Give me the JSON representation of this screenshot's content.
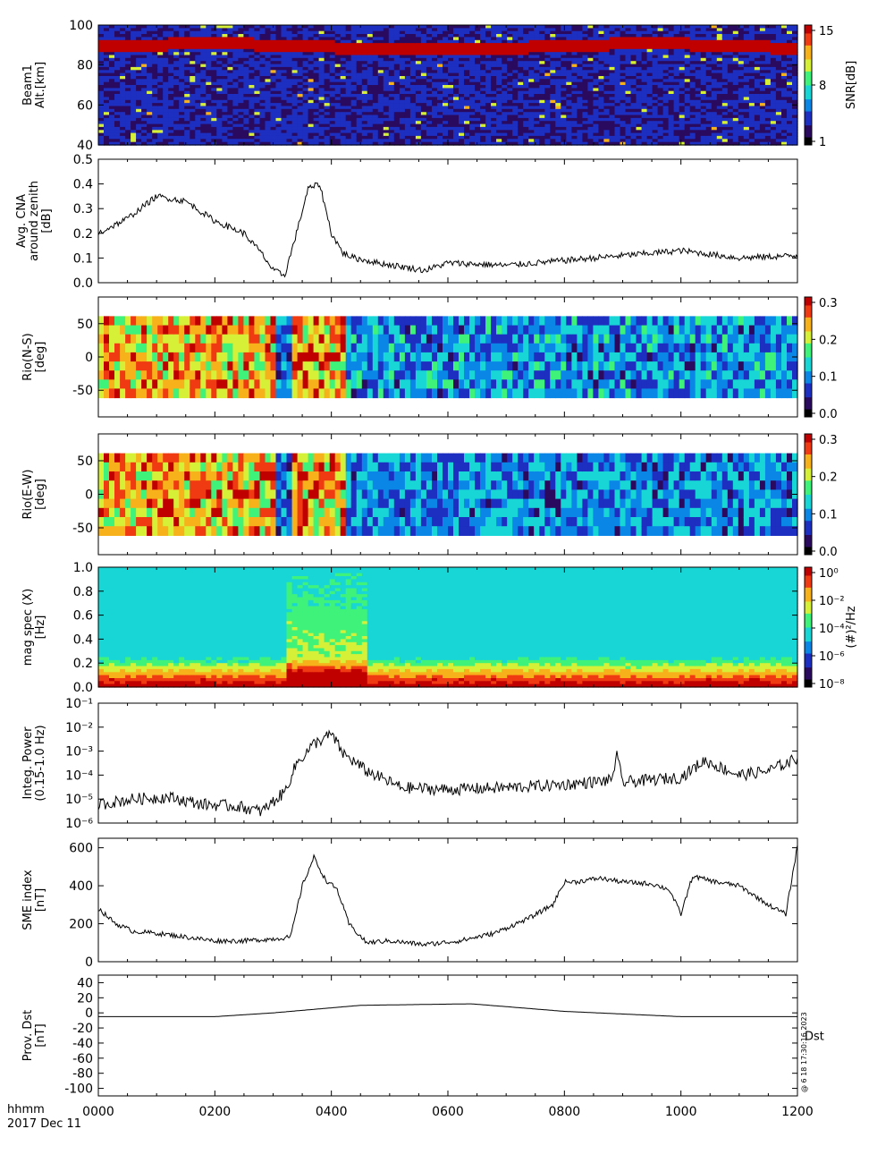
{
  "colors": {
    "line": "#000000",
    "jet": [
      "#000000",
      "#2a0a5e",
      "#1d2fc0",
      "#0a86e6",
      "#19d6d6",
      "#3ef27a",
      "#d6f038",
      "#f7b21b",
      "#ef3a12",
      "#c00000"
    ]
  },
  "footer": {
    "axis_label": "hhmm",
    "date": "2017 Dec 11",
    "stamp": "@ 6 18 17:30:16 2023"
  },
  "chart_data": [
    {
      "id": "beam1-snr",
      "type": "heatmap",
      "ylabel": [
        "Beam1",
        "Alt.[km]"
      ],
      "ylim": [
        40,
        100
      ],
      "yticks": [
        40,
        60,
        80,
        100
      ],
      "colorbar": {
        "label": "SNR[dB]",
        "range": [
          1,
          15
        ],
        "ticks": [
          "15",
          "8",
          "1"
        ]
      },
      "description_bands": [
        {
          "alt_center": 89,
          "width_km": 5,
          "snr": 15
        }
      ]
    },
    {
      "id": "cna",
      "type": "line",
      "ylabel": [
        "Avg. CNA",
        "around zenith",
        "[dB]"
      ],
      "ylim": [
        0,
        0.5
      ],
      "yticks": [
        "0.0",
        "0.1",
        "0.2",
        "0.3",
        "0.4",
        "0.5"
      ],
      "x": [
        0,
        50,
        100,
        150,
        200,
        250,
        280,
        300,
        320,
        340,
        360,
        380,
        400,
        420,
        440,
        480,
        560,
        600,
        700,
        800,
        900,
        1000,
        1100,
        1200
      ],
      "values": [
        0.2,
        0.26,
        0.35,
        0.33,
        0.25,
        0.2,
        0.12,
        0.05,
        0.03,
        0.2,
        0.38,
        0.4,
        0.2,
        0.12,
        0.1,
        0.08,
        0.05,
        0.08,
        0.07,
        0.09,
        0.11,
        0.13,
        0.1,
        0.11
      ]
    },
    {
      "id": "rio-ns",
      "type": "heatmap",
      "ylabel": [
        "Rio(N-S)",
        "[deg]"
      ],
      "ylim": [
        -90,
        90
      ],
      "yticks": [
        "50",
        "0",
        "-50"
      ],
      "colorbar": {
        "range": [
          0,
          0.35
        ],
        "ticks": [
          "0.3",
          "0.2",
          "0.1",
          "0.0"
        ]
      }
    },
    {
      "id": "rio-ew",
      "type": "heatmap",
      "ylabel": [
        "Rio(E-W)",
        "[deg]"
      ],
      "ylim": [
        -90,
        90
      ],
      "yticks": [
        "50",
        "0",
        "-50"
      ],
      "colorbar": {
        "range": [
          0,
          0.35
        ],
        "ticks": [
          "0.3",
          "0.2",
          "0.1",
          "0.0"
        ]
      }
    },
    {
      "id": "mag-spec",
      "type": "heatmap",
      "ylabel": [
        "mag spec (X)",
        "[Hz]"
      ],
      "ylim": [
        0,
        1.0
      ],
      "yticks": [
        "0.0",
        "0.2",
        "0.4",
        "0.6",
        "0.8",
        "1.0"
      ],
      "colorbar": {
        "label": "(#)²/Hz",
        "ticks": [
          "10⁰",
          "10⁻²",
          "10⁻⁴",
          "10⁻⁶",
          "10⁻⁸"
        ]
      }
    },
    {
      "id": "integ-power",
      "type": "line",
      "log": true,
      "ylabel": [
        "Integ. Power",
        "(0.15-1.0 Hz)"
      ],
      "ylim": [
        1e-06,
        0.1
      ],
      "yticks": [
        "10⁻¹",
        "10⁻²",
        "10⁻³",
        "10⁻⁴",
        "10⁻⁵",
        "10⁻⁶"
      ],
      "x": [
        0,
        60,
        120,
        180,
        240,
        280,
        320,
        340,
        370,
        400,
        420,
        460,
        520,
        600,
        700,
        800,
        880,
        890,
        900,
        1000,
        1040,
        1100,
        1150,
        1200
      ],
      "values": [
        6e-06,
        1e-05,
        1.2e-05,
        6e-06,
        5e-06,
        3e-06,
        2e-05,
        0.0003,
        0.002,
        0.005,
        0.0008,
        0.00015,
        3e-05,
        2.5e-05,
        3e-05,
        4e-05,
        6e-05,
        0.0006,
        5e-05,
        8e-05,
        0.0004,
        0.0001,
        0.00015,
        0.0005
      ]
    },
    {
      "id": "sme",
      "type": "line",
      "ylabel": [
        "SME index",
        "[nT]"
      ],
      "ylim": [
        0,
        650
      ],
      "yticks": [
        "0",
        "200",
        "400",
        "600"
      ],
      "x": [
        0,
        30,
        60,
        100,
        150,
        200,
        250,
        300,
        330,
        350,
        370,
        390,
        410,
        430,
        460,
        500,
        560,
        620,
        680,
        740,
        780,
        800,
        820,
        860,
        900,
        950,
        980,
        1000,
        1020,
        1060,
        1100,
        1150,
        1180,
        1200
      ],
      "values": [
        280,
        200,
        160,
        150,
        130,
        110,
        110,
        120,
        130,
        400,
        550,
        430,
        380,
        200,
        100,
        110,
        90,
        110,
        150,
        230,
        300,
        420,
        420,
        440,
        420,
        410,
        380,
        250,
        450,
        420,
        400,
        300,
        250,
        610
      ]
    },
    {
      "id": "dst",
      "type": "line",
      "ylabel": [
        "Prov. Dst",
        "[nT]"
      ],
      "ylim": [
        -110,
        50
      ],
      "yticks": [
        "40",
        "20",
        "0",
        "-20",
        "-40",
        "-60",
        "-80",
        "-100"
      ],
      "legend": "Dst",
      "x": [
        0,
        200,
        300,
        450,
        640,
        800,
        1000,
        1200
      ],
      "values": [
        -5,
        -5,
        0,
        10,
        12,
        2,
        -5,
        -5
      ]
    }
  ],
  "x_axis": {
    "xlim": [
      0,
      1200
    ],
    "ticks": [
      "0000",
      "0200",
      "0400",
      "0600",
      "0800",
      "1000",
      "1200"
    ]
  }
}
